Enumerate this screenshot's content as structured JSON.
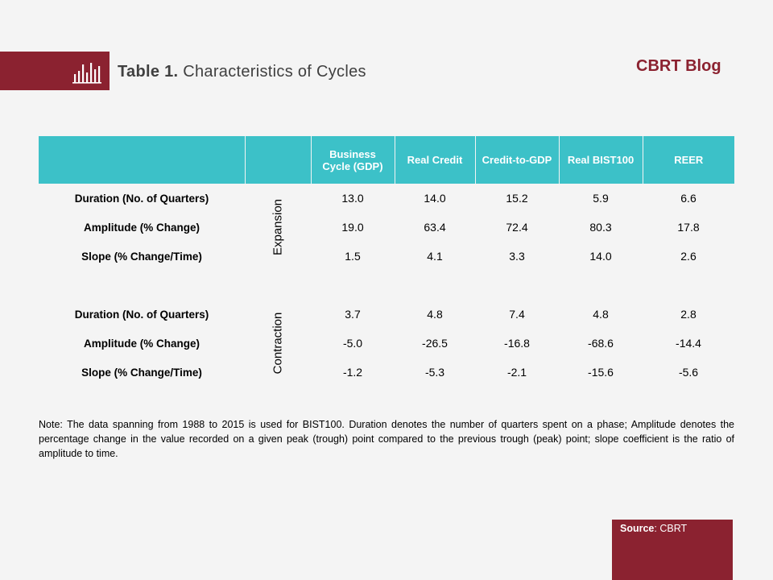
{
  "header": {
    "title_bold": "Table 1.",
    "title_rest": "Characteristics of Cycles",
    "brand": "CBRT Blog",
    "icon": "bar-chart-icon"
  },
  "table": {
    "columns": [
      "",
      "",
      "Business Cycle (GDP)",
      "Real Credit",
      "Credit-to-GDP",
      "Real BIST100",
      "REER"
    ],
    "expansion": {
      "phase": "Expansion",
      "rows": [
        {
          "label": "Duration (No. of Quarters)",
          "values": [
            "13.0",
            "14.0",
            "15.2",
            "5.9",
            "6.6"
          ]
        },
        {
          "label": "Amplitude (% Change)",
          "values": [
            "19.0",
            "63.4",
            "72.4",
            "80.3",
            "17.8"
          ]
        },
        {
          "label": "Slope (% Change/Time)",
          "values": [
            "1.5",
            "4.1",
            "3.3",
            "14.0",
            "2.6"
          ]
        }
      ]
    },
    "contraction": {
      "phase": "Contraction",
      "rows": [
        {
          "label": "Duration (No. of Quarters)",
          "values": [
            "3.7",
            "4.8",
            "7.4",
            "4.8",
            "2.8"
          ]
        },
        {
          "label": "Amplitude (% Change)",
          "values": [
            "-5.0",
            "-26.5",
            "-16.8",
            "-68.6",
            "-14.4"
          ]
        },
        {
          "label": "Slope (% Change/Time)",
          "values": [
            "-1.2",
            "-5.3",
            "-2.1",
            "-15.6",
            "-5.6"
          ]
        }
      ]
    }
  },
  "note": "Note: The data spanning from 1988 to 2015 is used for BIST100. Duration denotes the number of quarters spent on a phase; Amplitude denotes the percentage change in the value recorded on a given peak (trough) point compared to the previous trough (peak) point; slope coefficient is the ratio of amplitude to time.",
  "source": {
    "label": "Source",
    "value": ": CBRT"
  },
  "colors": {
    "accent": "#8b2230",
    "header_fill": "#3cc1c8",
    "background": "#f4f4f4"
  }
}
